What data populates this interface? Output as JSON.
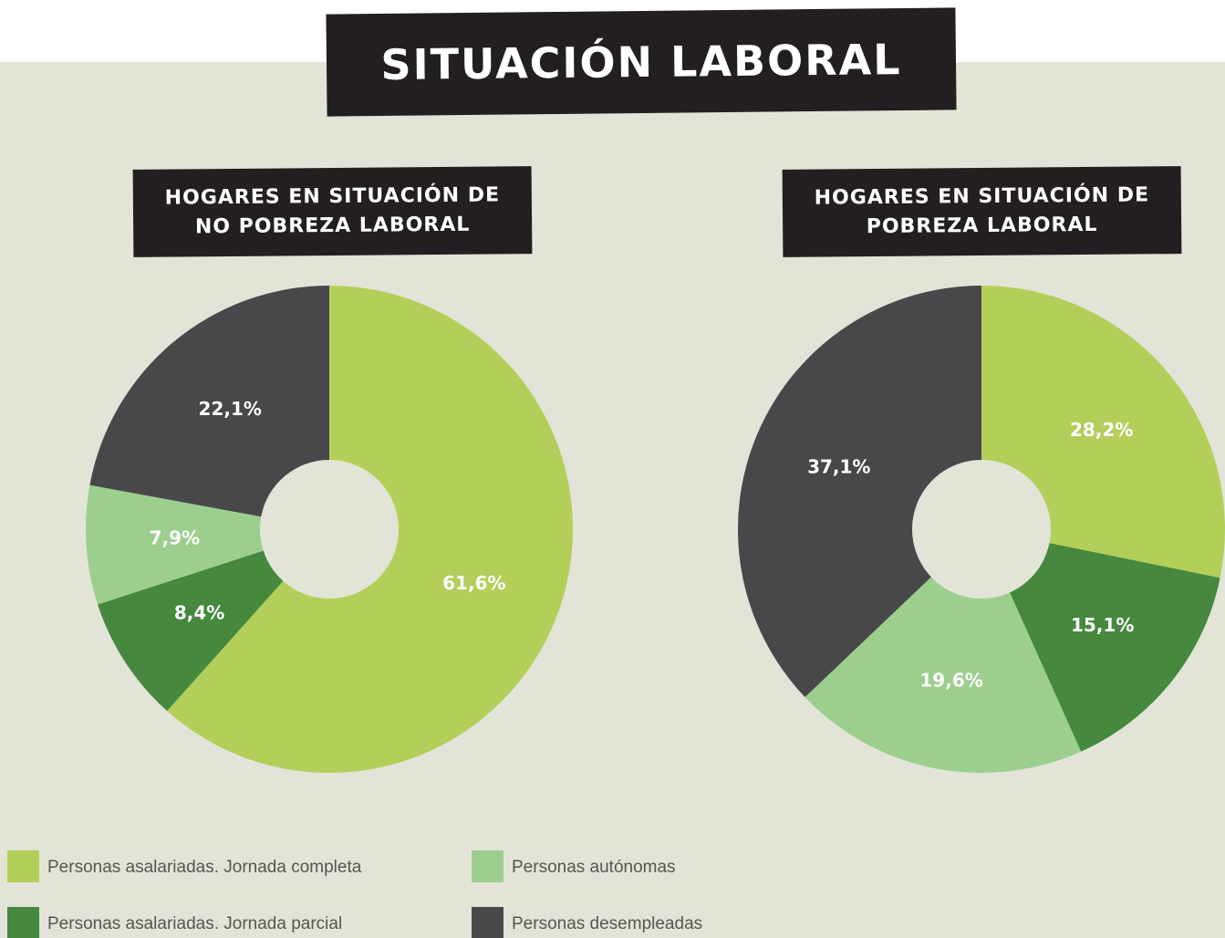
{
  "title": "SITUACIÓN LABORAL",
  "chart_data": [
    {
      "type": "pie",
      "title": "HOGARES EN SITUACIÓN DE NO POBREZA LABORAL",
      "categories": [
        "Personas asalariadas. Jornada completa",
        "Personas asalariadas. Jornada parcial",
        "Personas autónomas",
        "Personas desempleadas"
      ],
      "values": [
        61.6,
        8.4,
        7.9,
        22.1
      ],
      "value_labels": [
        "61,6%",
        "8,4%",
        "7,9%",
        "22,1%"
      ],
      "colors": [
        "#b3cf5a",
        "#45883e",
        "#9ccf8e",
        "#48484b"
      ],
      "donut": true
    },
    {
      "type": "pie",
      "title": "HOGARES EN SITUACIÓN DE POBREZA LABORAL",
      "categories": [
        "Personas asalariadas. Jornada completa",
        "Personas asalariadas. Jornada parcial",
        "Personas autónomas",
        "Personas desempleadas"
      ],
      "values": [
        28.2,
        15.1,
        19.6,
        37.1
      ],
      "value_labels": [
        "28,2%",
        "15,1%",
        "19,6%",
        "37,1%"
      ],
      "colors": [
        "#b3cf5a",
        "#45883e",
        "#9ccf8e",
        "#48484b"
      ],
      "donut": true
    }
  ]
}
